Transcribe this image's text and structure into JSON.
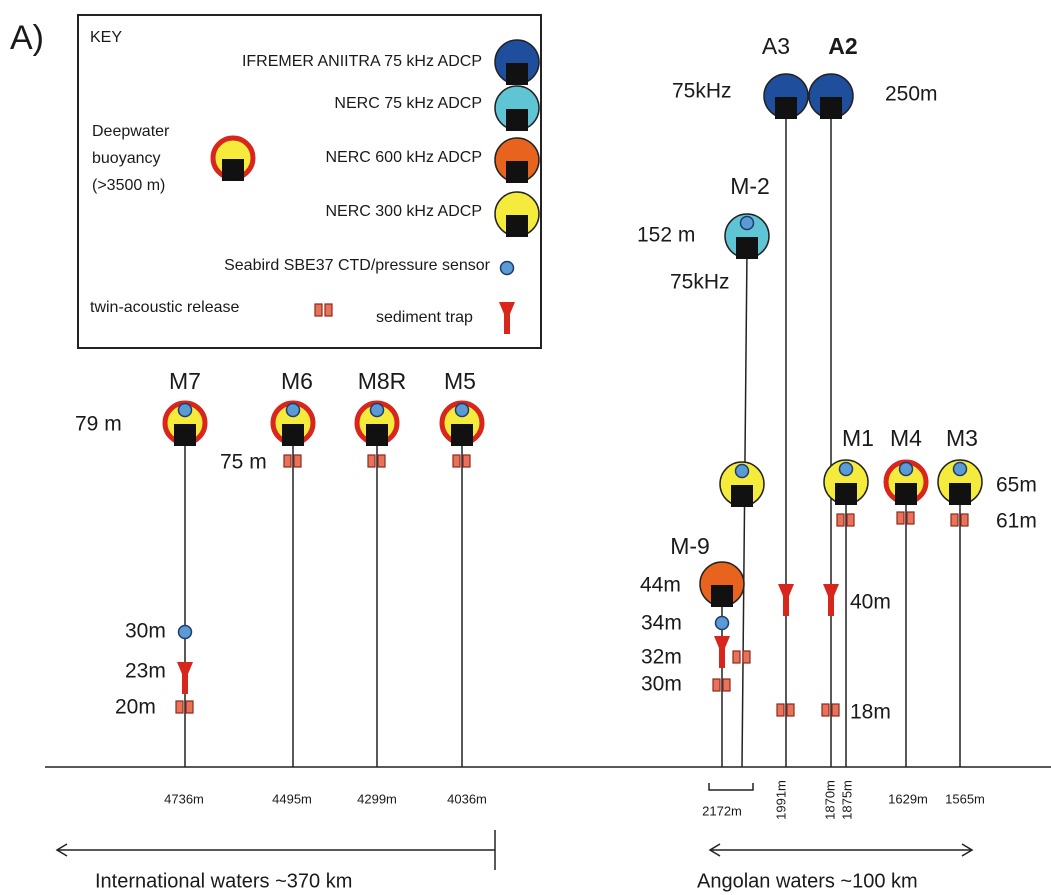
{
  "panel_label": "A)",
  "key": {
    "title": "KEY",
    "adcp": [
      "IFREMER ANIITRA 75 kHz ADCP",
      "NERC 75 kHz ADCP",
      "NERC 600 kHz ADCP",
      "NERC 300 kHz ADCP"
    ],
    "buoyancy": [
      "Deepwater",
      "buoyancy",
      "(>3500 m)"
    ],
    "ctd": "Seabird SBE37 CTD/pressure sensor",
    "release": "twin-acoustic release",
    "trap": "sediment trap"
  },
  "moorings": [
    "M7",
    "M6",
    "M8R",
    "M5",
    "A3",
    "A2",
    "M-2",
    "M-9",
    "M1",
    "M4",
    "M3"
  ],
  "bottom_depths": [
    "4736m",
    "4495m",
    "4299m",
    "4036m",
    "2172m",
    "1991m",
    "1870m",
    "1875m",
    "1629m",
    "1565m"
  ],
  "annotations": [
    "79 m",
    "75 m",
    "30m",
    "23m",
    "20m",
    "75kHz",
    "250m",
    "152 m",
    "75kHz",
    "44m",
    "34m",
    "32m",
    "30m",
    "40m",
    "18m",
    "65m",
    "61m"
  ],
  "regions": [
    "International waters ~370 km",
    "Angolan waters ~100 km"
  ]
}
